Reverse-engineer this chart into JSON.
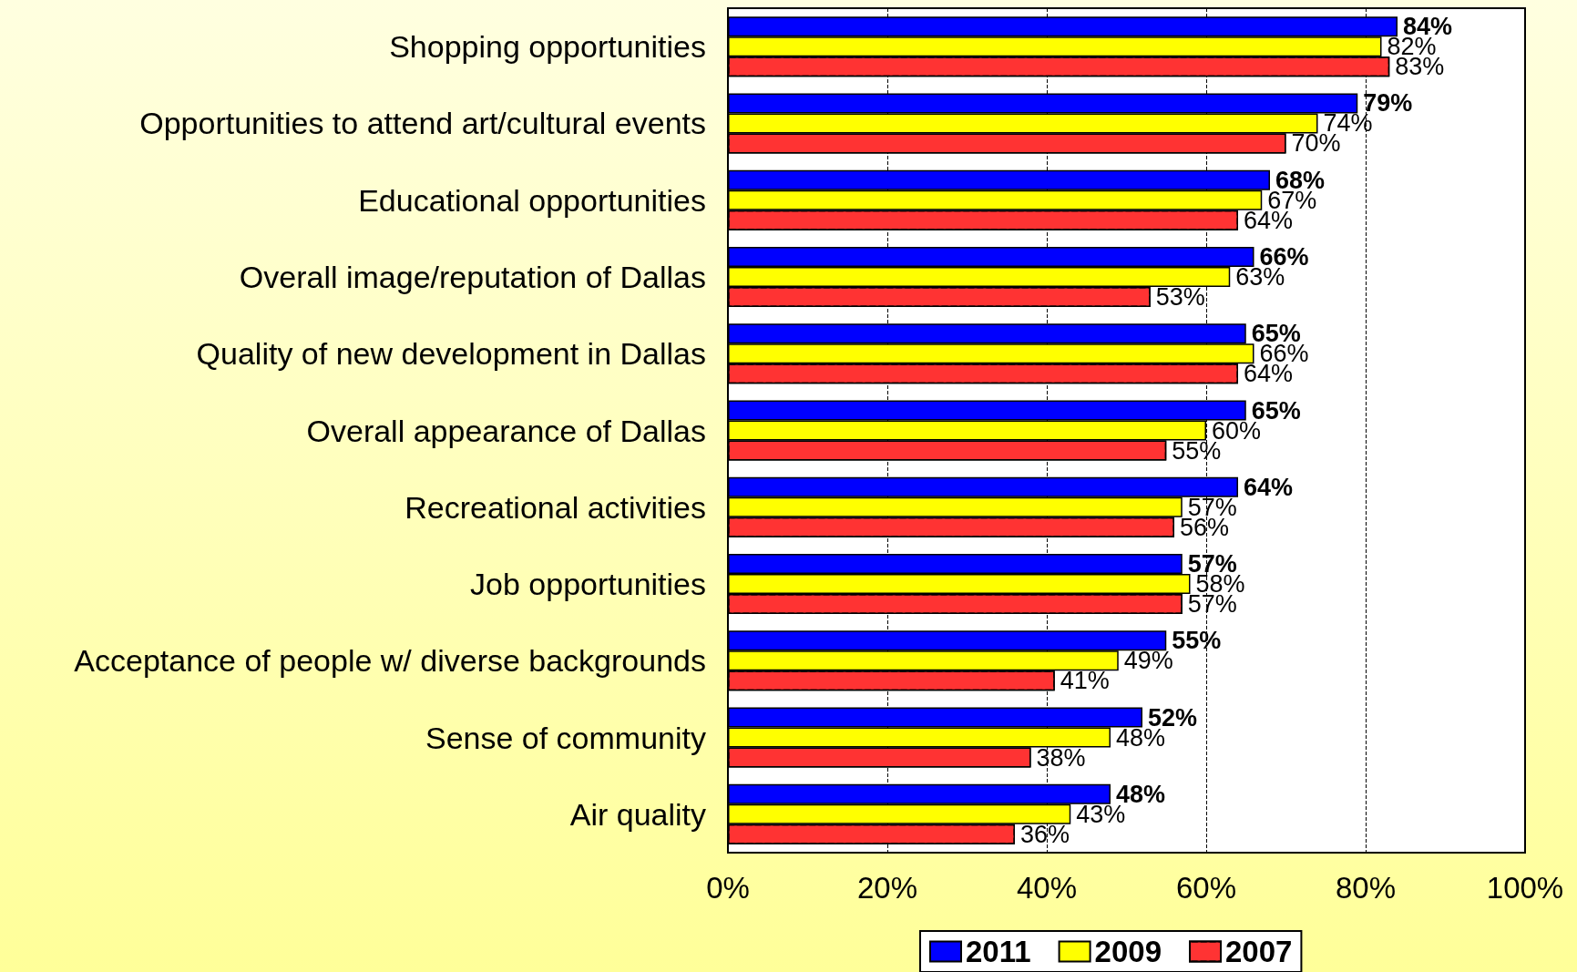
{
  "chart_data": {
    "type": "bar",
    "orientation": "horizontal",
    "categories": [
      "Shopping opportunities",
      "Opportunities to attend art/cultural events",
      "Educational opportunities",
      "Overall image/reputation of Dallas",
      "Quality of new development in Dallas",
      "Overall appearance of Dallas",
      "Recreational activities",
      "Job opportunities",
      "Acceptance of people w/ diverse backgrounds",
      "Sense of community",
      "Air quality"
    ],
    "series": [
      {
        "name": "2011",
        "color": "#0000ff",
        "values": [
          84,
          79,
          68,
          66,
          65,
          65,
          64,
          57,
          55,
          52,
          48
        ],
        "value_labels": [
          "84%",
          "79%",
          "68%",
          "66%",
          "65%",
          "65%",
          "64%",
          "57%",
          "55%",
          "52%",
          "48%"
        ]
      },
      {
        "name": "2009",
        "color": "#ffff00",
        "values": [
          82,
          74,
          67,
          63,
          66,
          60,
          57,
          58,
          49,
          48,
          43
        ],
        "value_labels": [
          "82%",
          "74%",
          "67%",
          "63%",
          "66%",
          "60%",
          "57%",
          "58%",
          "49%",
          "48%",
          "43%"
        ]
      },
      {
        "name": "2007",
        "color": "#ff3333",
        "values": [
          83,
          70,
          64,
          53,
          64,
          55,
          56,
          57,
          41,
          38,
          36
        ],
        "value_labels": [
          "83%",
          "70%",
          "64%",
          "53%",
          "64%",
          "55%",
          "56%",
          "57%",
          "41%",
          "38%",
          "36%"
        ]
      }
    ],
    "xlim": [
      0,
      100
    ],
    "xticks": [
      {
        "value": 0,
        "label": "0%"
      },
      {
        "value": 20,
        "label": "20%"
      },
      {
        "value": 40,
        "label": "40%"
      },
      {
        "value": 60,
        "label": "60%"
      },
      {
        "value": 80,
        "label": "80%"
      },
      {
        "value": 100,
        "label": "100%"
      }
    ],
    "grid": "x",
    "legend": "bottom"
  }
}
